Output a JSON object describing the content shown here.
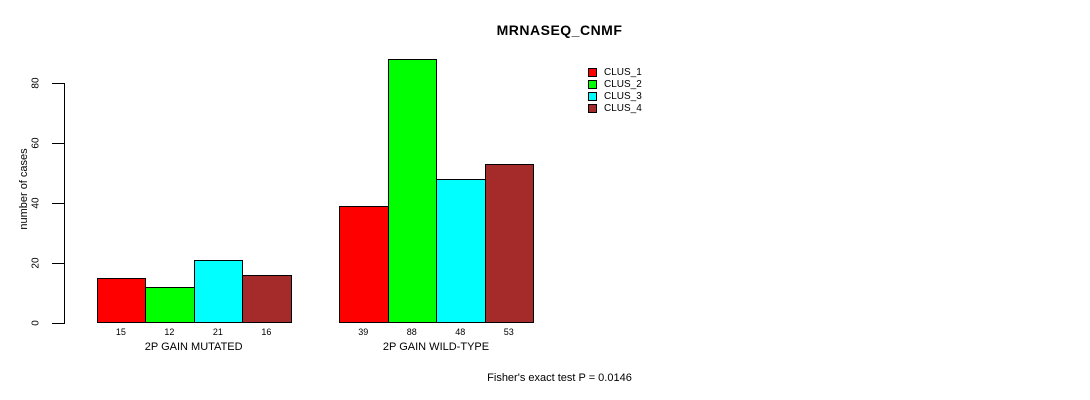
{
  "title": "MRNASEQ_CNMF",
  "footer": "Fisher's exact test P = 0.0146",
  "colors": {
    "clus_1": "#FF0000",
    "clus_2": "#00FF00",
    "clus_3": "#00FFFF",
    "clus_4": "#A52A2A",
    "axis": "#000000",
    "background": "#FFFFFF"
  },
  "chart_data": {
    "type": "bar",
    "title": "MRNASEQ_CNMF",
    "xlabel": "",
    "ylabel": "number of cases",
    "ylim": [
      0,
      88
    ],
    "yticks": [
      0,
      20,
      40,
      60,
      80
    ],
    "grid": false,
    "legend_position": "inside-top-right",
    "categories": [
      "2P GAIN MUTATED",
      "2P GAIN WILD-TYPE"
    ],
    "series": [
      {
        "name": "CLUS_1",
        "color": "#FF0000",
        "values": [
          15,
          39
        ]
      },
      {
        "name": "CLUS_2",
        "color": "#00FF00",
        "values": [
          12,
          88
        ]
      },
      {
        "name": "CLUS_3",
        "color": "#00FFFF",
        "values": [
          21,
          48
        ]
      },
      {
        "name": "CLUS_4",
        "color": "#A52A2A",
        "values": [
          16,
          53
        ]
      }
    ],
    "bar_value_labels": {
      "2P GAIN MUTATED": [
        15,
        12,
        21,
        16
      ],
      "2P GAIN WILD-TYPE": [
        39,
        88,
        48,
        53
      ]
    },
    "annotation": "Fisher's exact test P = 0.0146"
  }
}
